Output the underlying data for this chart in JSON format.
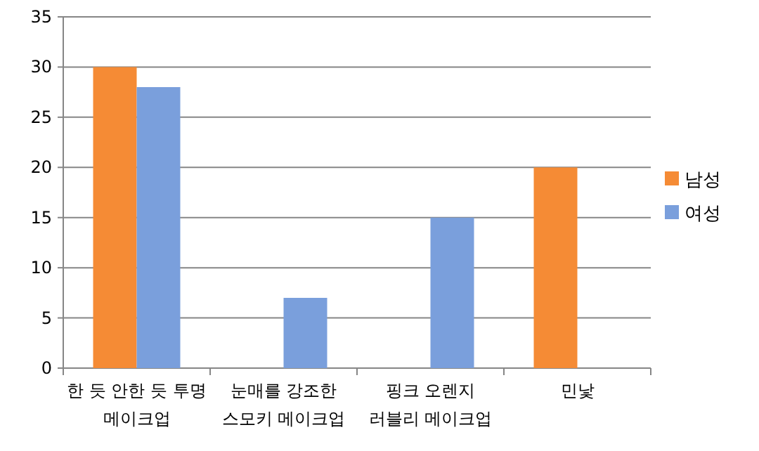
{
  "chart_data": {
    "type": "bar",
    "categories": [
      "한 듯 안한 듯 투명\n메이크업",
      "눈매를 강조한\n스모키 메이크업",
      "핑크 오렌지\n러블리 메이크업",
      "민낯"
    ],
    "series": [
      {
        "name": "남성",
        "color": "#f58b35",
        "values": [
          30,
          null,
          null,
          20
        ]
      },
      {
        "name": "여성",
        "color": "#7a9fdc",
        "values": [
          28,
          7,
          15,
          null
        ]
      }
    ],
    "ylim": [
      0,
      35
    ],
    "yticks": [
      0,
      5,
      10,
      15,
      20,
      25,
      30,
      35
    ],
    "grid": "y",
    "legend": "right"
  }
}
